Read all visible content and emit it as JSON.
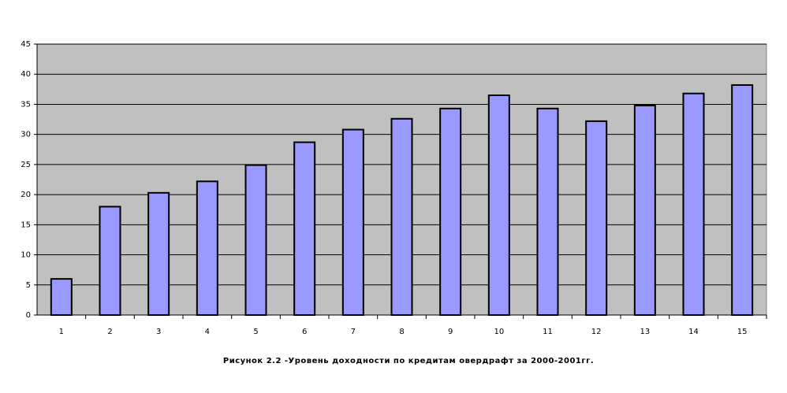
{
  "chart_data": {
    "type": "bar",
    "title": "Рисунок 2.2 -Уровень доходности по кредитам овердрафт за 2000-2001гг.",
    "categories": [
      "1",
      "2",
      "3",
      "4",
      "5",
      "6",
      "7",
      "8",
      "9",
      "10",
      "11",
      "12",
      "13",
      "14",
      "15"
    ],
    "values": [
      6.0,
      18.0,
      20.3,
      22.2,
      24.9,
      28.7,
      30.8,
      32.6,
      34.3,
      36.5,
      34.3,
      32.2,
      34.8,
      36.8,
      38.2
    ],
    "color": "#9999ff",
    "ylim": [
      0,
      45
    ],
    "yticks": [
      0,
      5,
      10,
      15,
      20,
      25,
      30,
      35,
      40,
      45
    ],
    "grid": true
  }
}
